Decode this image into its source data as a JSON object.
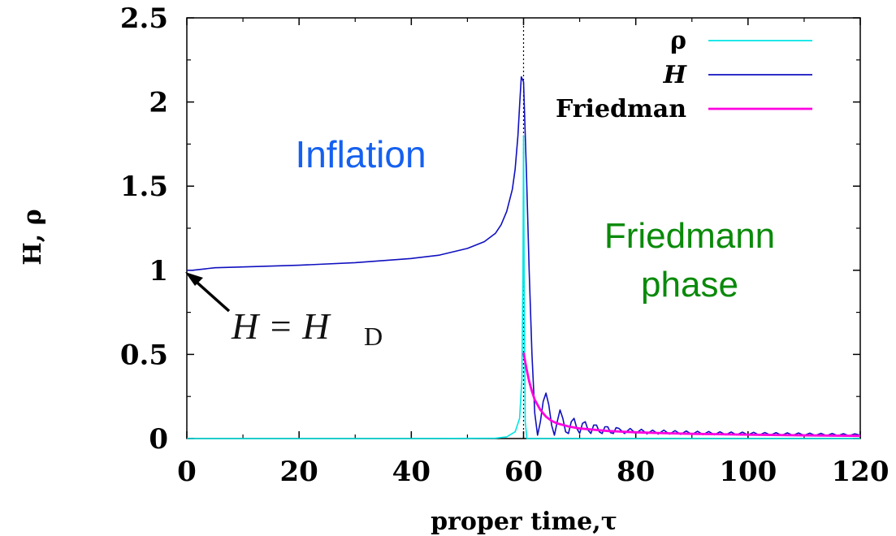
{
  "chart_data": {
    "type": "line",
    "xlabel": "proper time,τ",
    "ylabel": "H, ρ",
    "xlim": [
      0,
      120
    ],
    "ylim": [
      0,
      2.5
    ],
    "x_ticks": [
      "0",
      "20",
      "40",
      "60",
      "80",
      "100",
      "120"
    ],
    "y_ticks": [
      "0",
      "0.5",
      "1",
      "1.5",
      "2",
      "2.5"
    ],
    "grid": false,
    "legend_position": "top-right",
    "vertical_marker_x": 60,
    "series": [
      {
        "name": "ρ",
        "color": "#00e5e5",
        "points": [
          [
            0,
            0
          ],
          [
            40,
            0
          ],
          [
            55,
            0.002
          ],
          [
            57,
            0.01
          ],
          [
            58.5,
            0.04
          ],
          [
            59.3,
            0.12
          ],
          [
            59.7,
            0.35
          ],
          [
            59.9,
            1.0
          ],
          [
            60.0,
            1.8
          ],
          [
            60.1,
            1.0
          ],
          [
            60.3,
            0.1
          ],
          [
            60.6,
            0.0
          ],
          [
            120,
            0
          ]
        ]
      },
      {
        "name": "H",
        "color": "#1010c0",
        "points": [
          [
            0,
            1.0
          ],
          [
            1,
            1.0
          ],
          [
            5,
            1.015
          ],
          [
            10,
            1.02
          ],
          [
            20,
            1.03
          ],
          [
            30,
            1.045
          ],
          [
            40,
            1.07
          ],
          [
            45,
            1.09
          ],
          [
            50,
            1.13
          ],
          [
            53,
            1.17
          ],
          [
            55,
            1.22
          ],
          [
            56,
            1.27
          ],
          [
            57,
            1.35
          ],
          [
            58,
            1.48
          ],
          [
            58.5,
            1.6
          ],
          [
            59,
            1.8
          ],
          [
            59.3,
            1.98
          ],
          [
            59.6,
            2.15
          ],
          [
            60.0,
            2.12
          ],
          [
            60.5,
            1.6
          ],
          [
            61,
            1.0
          ],
          [
            61.5,
            0.5
          ],
          [
            62,
            0.15
          ],
          [
            62.5,
            0.02
          ],
          [
            63,
            0.1
          ],
          [
            63.5,
            0.22
          ],
          [
            64,
            0.27
          ],
          [
            64.5,
            0.2
          ],
          [
            65,
            0.08
          ],
          [
            65.5,
            0.02
          ],
          [
            66,
            0.1
          ],
          [
            66.5,
            0.17
          ],
          [
            67,
            0.12
          ],
          [
            67.5,
            0.04
          ],
          [
            68,
            0.03
          ],
          [
            68.5,
            0.1
          ],
          [
            69,
            0.12
          ],
          [
            69.5,
            0.06
          ],
          [
            70,
            0.03
          ],
          [
            70.5,
            0.09
          ],
          [
            71,
            0.1
          ],
          [
            71.5,
            0.05
          ],
          [
            72,
            0.03
          ],
          [
            72.5,
            0.08
          ],
          [
            73,
            0.08
          ],
          [
            73.5,
            0.04
          ],
          [
            74,
            0.03
          ],
          [
            74.5,
            0.07
          ],
          [
            75,
            0.07
          ],
          [
            75.5,
            0.035
          ],
          [
            76,
            0.03
          ],
          [
            76.5,
            0.065
          ],
          [
            77,
            0.06
          ],
          [
            78,
            0.03
          ],
          [
            79,
            0.06
          ],
          [
            80,
            0.03
          ],
          [
            81,
            0.055
          ],
          [
            82,
            0.028
          ],
          [
            83,
            0.05
          ],
          [
            84,
            0.027
          ],
          [
            85,
            0.05
          ],
          [
            86,
            0.026
          ],
          [
            87,
            0.047
          ],
          [
            88,
            0.025
          ],
          [
            89,
            0.045
          ],
          [
            90,
            0.024
          ],
          [
            91,
            0.043
          ],
          [
            92,
            0.023
          ],
          [
            93,
            0.042
          ],
          [
            94,
            0.022
          ],
          [
            95,
            0.04
          ],
          [
            96,
            0.022
          ],
          [
            97,
            0.039
          ],
          [
            98,
            0.021
          ],
          [
            99,
            0.038
          ],
          [
            100,
            0.021
          ],
          [
            101,
            0.037
          ],
          [
            102,
            0.02
          ],
          [
            103,
            0.036
          ],
          [
            104,
            0.02
          ],
          [
            105,
            0.035
          ],
          [
            106,
            0.019
          ],
          [
            107,
            0.034
          ],
          [
            108,
            0.019
          ],
          [
            109,
            0.033
          ],
          [
            110,
            0.018
          ],
          [
            111,
            0.032
          ],
          [
            112,
            0.018
          ],
          [
            113,
            0.031
          ],
          [
            114,
            0.017
          ],
          [
            115,
            0.03
          ],
          [
            116,
            0.017
          ],
          [
            117,
            0.029
          ],
          [
            118,
            0.016
          ],
          [
            119,
            0.028
          ],
          [
            120,
            0.02
          ]
        ]
      },
      {
        "name": "Friedman",
        "color": "#ff00e0",
        "points": [
          [
            60,
            0.51
          ],
          [
            60.5,
            0.42
          ],
          [
            61,
            0.34
          ],
          [
            61.5,
            0.28
          ],
          [
            62,
            0.23
          ],
          [
            63,
            0.17
          ],
          [
            64,
            0.13
          ],
          [
            65,
            0.105
          ],
          [
            66,
            0.09
          ],
          [
            68,
            0.072
          ],
          [
            70,
            0.06
          ],
          [
            75,
            0.045
          ],
          [
            80,
            0.037
          ],
          [
            85,
            0.032
          ],
          [
            90,
            0.028
          ],
          [
            100,
            0.023
          ],
          [
            110,
            0.019
          ],
          [
            120,
            0.016
          ]
        ]
      }
    ],
    "annotations": {
      "inflation": "Inflation",
      "friedmann_line1": "Friedmann",
      "friedmann_line2": "phase",
      "math_lhs": "H = H",
      "math_sub": "D"
    },
    "colors": {
      "inflation_text": "#1560f0",
      "friedmann_text": "#0a8a0a"
    }
  }
}
